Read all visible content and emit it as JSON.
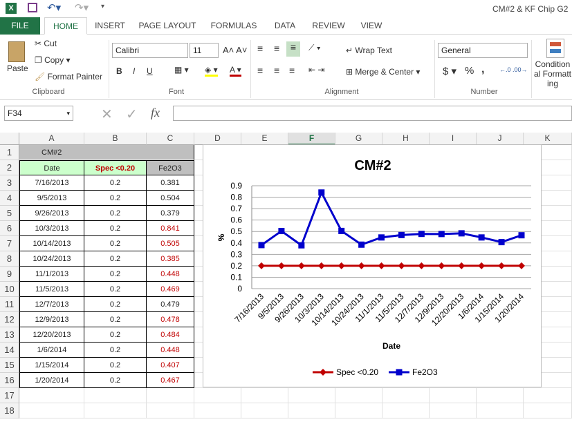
{
  "window": {
    "title": "CM#2 & KF Chip G2"
  },
  "tabs": [
    "FILE",
    "HOME",
    "INSERT",
    "PAGE LAYOUT",
    "FORMULAS",
    "DATA",
    "REVIEW",
    "VIEW"
  ],
  "ribbon": {
    "clipboard": {
      "paste": "Paste",
      "cut": "Cut",
      "copy": "Copy",
      "format_painter": "Format Painter",
      "label": "Clipboard"
    },
    "font": {
      "name": "Calibri",
      "size": "11",
      "bold": "B",
      "italic": "I",
      "underline": "U",
      "label": "Font"
    },
    "alignment": {
      "wrap_text": "Wrap Text",
      "merge_center": "Merge & Center",
      "label": "Alignment"
    },
    "number": {
      "format": "General",
      "currency": "$",
      "percent": "%",
      "comma": ",",
      "label": "Number"
    },
    "styles": {
      "conditional": "Conditional Formatting"
    }
  },
  "formula_bar": {
    "name_box": "F34",
    "fx": "fx",
    "value": ""
  },
  "columns": [
    "A",
    "B",
    "C",
    "D",
    "E",
    "F",
    "G",
    "H",
    "I",
    "J",
    "K"
  ],
  "selected_column": "F",
  "rows": [
    "1",
    "2",
    "3",
    "4",
    "5",
    "6",
    "7",
    "8",
    "9",
    "10",
    "11",
    "12",
    "13",
    "14",
    "15",
    "16",
    "17",
    "18"
  ],
  "sheet": {
    "title_cell": "CM#2",
    "headers": [
      "Date",
      "Spec <0.20",
      "Fe2O3"
    ],
    "data": [
      [
        "7/16/2013",
        "0.2",
        "0.381",
        false
      ],
      [
        "9/5/2013",
        "0.2",
        "0.504",
        false
      ],
      [
        "9/26/2013",
        "0.2",
        "0.379",
        false
      ],
      [
        "10/3/2013",
        "0.2",
        "0.841",
        true
      ],
      [
        "10/14/2013",
        "0.2",
        "0.505",
        true
      ],
      [
        "10/24/2013",
        "0.2",
        "0.385",
        true
      ],
      [
        "11/1/2013",
        "0.2",
        "0.448",
        true
      ],
      [
        "11/5/2013",
        "0.2",
        "0.469",
        true
      ],
      [
        "12/7/2013",
        "0.2",
        "0.479",
        false
      ],
      [
        "12/9/2013",
        "0.2",
        "0.478",
        true
      ],
      [
        "12/20/2013",
        "0.2",
        "0.484",
        true
      ],
      [
        "1/6/2014",
        "0.2",
        "0.448",
        true
      ],
      [
        "1/15/2014",
        "0.2",
        "0.407",
        true
      ],
      [
        "1/20/2014",
        "0.2",
        "0.467",
        true
      ]
    ]
  },
  "chart_data": {
    "type": "line",
    "title": "CM#2",
    "xlabel": "Date",
    "ylabel": "%",
    "ylim": [
      0,
      0.9
    ],
    "yticks": [
      "0",
      "0.1",
      "0.2",
      "0.3",
      "0.4",
      "0.5",
      "0.6",
      "0.7",
      "0.8",
      "0.9"
    ],
    "categories": [
      "7/16/2013",
      "9/5/2013",
      "9/26/2013",
      "10/3/2013",
      "10/14/2013",
      "10/24/2013",
      "11/1/2013",
      "11/5/2013",
      "12/7/2013",
      "12/9/2013",
      "12/20/2013",
      "1/6/2014",
      "1/15/2014",
      "1/20/2014"
    ],
    "series": [
      {
        "name": "Spec <0.20",
        "color": "#c00000",
        "marker": "diamond",
        "values": [
          0.2,
          0.2,
          0.2,
          0.2,
          0.2,
          0.2,
          0.2,
          0.2,
          0.2,
          0.2,
          0.2,
          0.2,
          0.2,
          0.2
        ]
      },
      {
        "name": "Fe2O3",
        "color": "#0000cc",
        "marker": "square",
        "values": [
          0.381,
          0.504,
          0.379,
          0.841,
          0.505,
          0.385,
          0.448,
          0.469,
          0.479,
          0.478,
          0.484,
          0.448,
          0.407,
          0.467
        ]
      }
    ],
    "legend": "bottom",
    "grid": true
  }
}
